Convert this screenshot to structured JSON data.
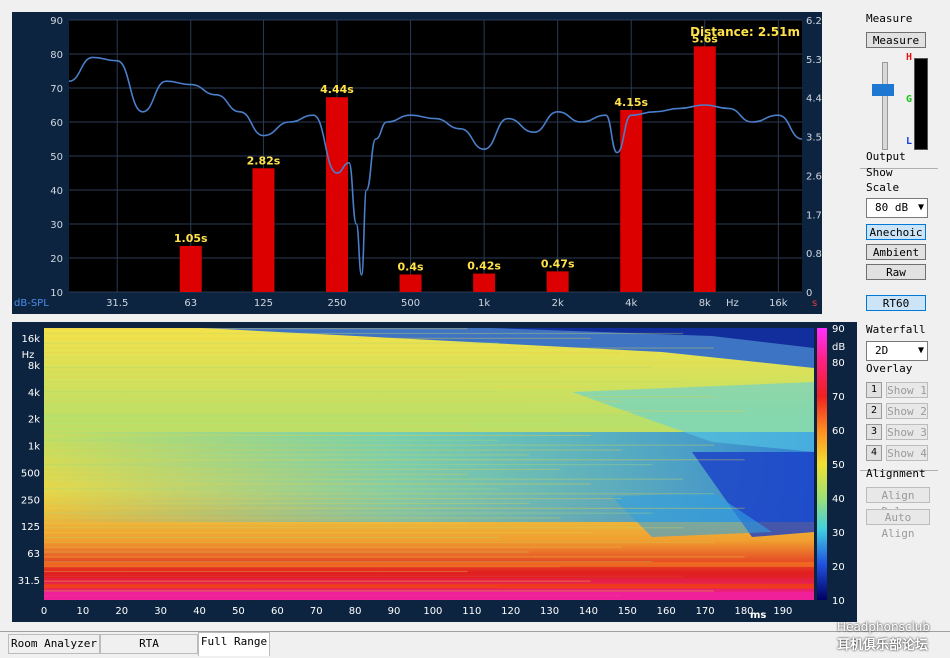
{
  "top_chart": {
    "distance_label": "Distance: 2.51m",
    "y_left_ticks": [
      "90",
      "80",
      "70",
      "60",
      "50",
      "40",
      "30",
      "20",
      "10"
    ],
    "y_left_unit": "dB-SPL",
    "y_right_ticks": [
      "6.2",
      "5.31",
      "4.43",
      "3.54",
      "2.66",
      "1.77",
      "0.89",
      "0"
    ],
    "y_right_unit": "s",
    "x_ticks": [
      "31.5",
      "63",
      "125",
      "250",
      "500",
      "1k",
      "2k",
      "4k",
      "8k",
      "16k"
    ],
    "x_unit": "Hz",
    "colors": {
      "bg": "#000000",
      "grid": "#2a3a55",
      "bar": "#dd0000",
      "curve": "#4a7ec8",
      "label": "#ffe24a"
    }
  },
  "chart_data": [
    {
      "type": "bar",
      "categories": [
        "63",
        "125",
        "250",
        "500",
        "1k",
        "2k",
        "4k",
        "8k"
      ],
      "values": [
        1.05,
        2.82,
        4.44,
        0.4,
        0.42,
        0.47,
        4.15,
        5.6
      ],
      "labels": [
        "1.05s",
        "2.82s",
        "4.44s",
        "0.4s",
        "0.42s",
        "0.47s",
        "4.15s",
        "5.6s"
      ],
      "ylabel": "s",
      "ylim": [
        0,
        6.2
      ]
    },
    {
      "type": "line",
      "xlabel": "Hz",
      "ylabel": "dB-SPL",
      "ylim": [
        10,
        90
      ],
      "x": [
        20,
        25,
        31.5,
        40,
        50,
        63,
        80,
        100,
        125,
        160,
        200,
        250,
        280,
        300,
        315,
        330,
        360,
        400,
        500,
        630,
        800,
        1000,
        1250,
        1600,
        2000,
        2500,
        3150,
        3500,
        4000,
        5000,
        6300,
        8000,
        10000,
        12500,
        16000,
        20000
      ],
      "y": [
        72,
        79,
        78,
        63,
        72,
        71,
        68,
        63,
        56,
        60,
        62,
        45,
        48,
        30,
        15,
        40,
        55,
        60,
        62,
        61,
        58,
        52,
        61,
        57,
        63,
        60,
        62,
        51,
        62,
        63,
        64,
        65,
        64,
        60,
        62,
        55
      ]
    },
    {
      "type": "heatmap",
      "xlabel": "ms",
      "ylabel": "Hz",
      "x_ticks": [
        "0",
        "10",
        "20",
        "30",
        "40",
        "50",
        "60",
        "70",
        "80",
        "90",
        "100",
        "110",
        "120",
        "130",
        "140",
        "150",
        "160",
        "170",
        "180",
        "190"
      ],
      "y_ticks": [
        "16k",
        "8k",
        "4k",
        "2k",
        "1k",
        "500",
        "250",
        "125",
        "63",
        "31.5"
      ],
      "color_ticks": [
        "90",
        "80",
        "70",
        "60",
        "50",
        "40",
        "30",
        "20",
        "10"
      ],
      "color_unit": "dB",
      "xlim": [
        0,
        198
      ],
      "clim": [
        10,
        90
      ]
    }
  ],
  "sidebar": {
    "measure_heading": "Measure",
    "measure_button": "Measure",
    "output_label": "Output",
    "meter_labels": [
      "H",
      "G",
      "L"
    ],
    "show_heading": "Show",
    "scale_label": "Scale",
    "scale_value": "80 dB",
    "anechoic_label": "Anechoic",
    "ambient_label": "Ambient",
    "raw_label": "Raw",
    "rt60_label": "RT60",
    "waterfall_label": "Waterfall",
    "waterfall_value": "2D",
    "overlay_label": "Overlay",
    "overlay_rows": [
      {
        "num": "1",
        "label": "Show 1"
      },
      {
        "num": "2",
        "label": "Show 2"
      },
      {
        "num": "3",
        "label": "Show 3"
      },
      {
        "num": "4",
        "label": "Show 4"
      }
    ],
    "alignment_label": "Alignment",
    "align_delay_label": "Align Delay",
    "auto_align_label": "Auto Align"
  },
  "tabs": [
    "Room Analyzer",
    "RTA",
    "Full Range"
  ],
  "watermark": {
    "line1": "Headphonsclub",
    "line2": "耳机俱乐部论坛"
  }
}
